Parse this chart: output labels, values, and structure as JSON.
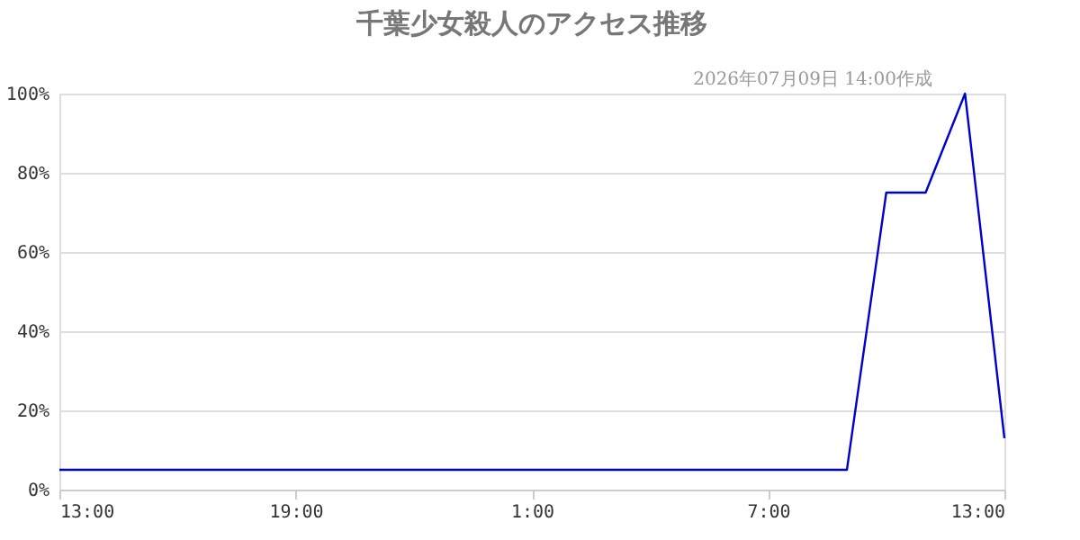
{
  "chart_data": {
    "type": "line",
    "title": "千葉少女殺人のアクセス推移",
    "subtitle": "2026年07月09日 14:00作成",
    "x": [
      "2026-07-08T13:00",
      "2026-07-08T14:00",
      "2026-07-08T15:00",
      "2026-07-08T16:00",
      "2026-07-08T17:00",
      "2026-07-08T18:00",
      "2026-07-08T19:00",
      "2026-07-08T20:00",
      "2026-07-08T21:00",
      "2026-07-08T22:00",
      "2026-07-08T23:00",
      "2026-07-09T00:00",
      "2026-07-09T01:00",
      "2026-07-09T02:00",
      "2026-07-09T03:00",
      "2026-07-09T04:00",
      "2026-07-09T05:00",
      "2026-07-09T06:00",
      "2026-07-09T07:00",
      "2026-07-09T08:00",
      "2026-07-09T09:00",
      "2026-07-09T10:00",
      "2026-07-09T11:00",
      "2026-07-09T12:00",
      "2026-07-09T13:00"
    ],
    "series": [
      {
        "color": "#0000cc",
        "values": [
          5,
          5,
          5,
          5,
          5,
          5,
          5,
          5,
          5,
          5,
          5,
          5,
          5,
          5,
          5,
          5,
          5,
          5,
          5,
          5,
          5,
          75,
          75,
          100,
          13
        ]
      }
    ],
    "xlim": [
      "2026-07-08T13:00",
      "2026-07-09T13:00"
    ],
    "xticks": [
      {
        "value": "2026-07-08T13:00",
        "label": "13:00"
      },
      {
        "value": "2026-07-08T19:00",
        "label": "19:00"
      },
      {
        "value": "2026-07-09T01:00",
        "label": "1:00"
      },
      {
        "value": "2026-07-09T07:00",
        "label": "7:00"
      },
      {
        "value": "2026-07-09T13:00",
        "label": "13:00"
      }
    ],
    "ylim": [
      0,
      100
    ],
    "yticks": [
      {
        "value": 0,
        "label": "0%"
      },
      {
        "value": 20,
        "label": "20%"
      },
      {
        "value": 40,
        "label": "40%"
      },
      {
        "value": 60,
        "label": "60%"
      },
      {
        "value": 80,
        "label": "80%"
      },
      {
        "value": 100,
        "label": "100%"
      }
    ],
    "grid": "y",
    "marker": "none",
    "line_style": "solid"
  }
}
